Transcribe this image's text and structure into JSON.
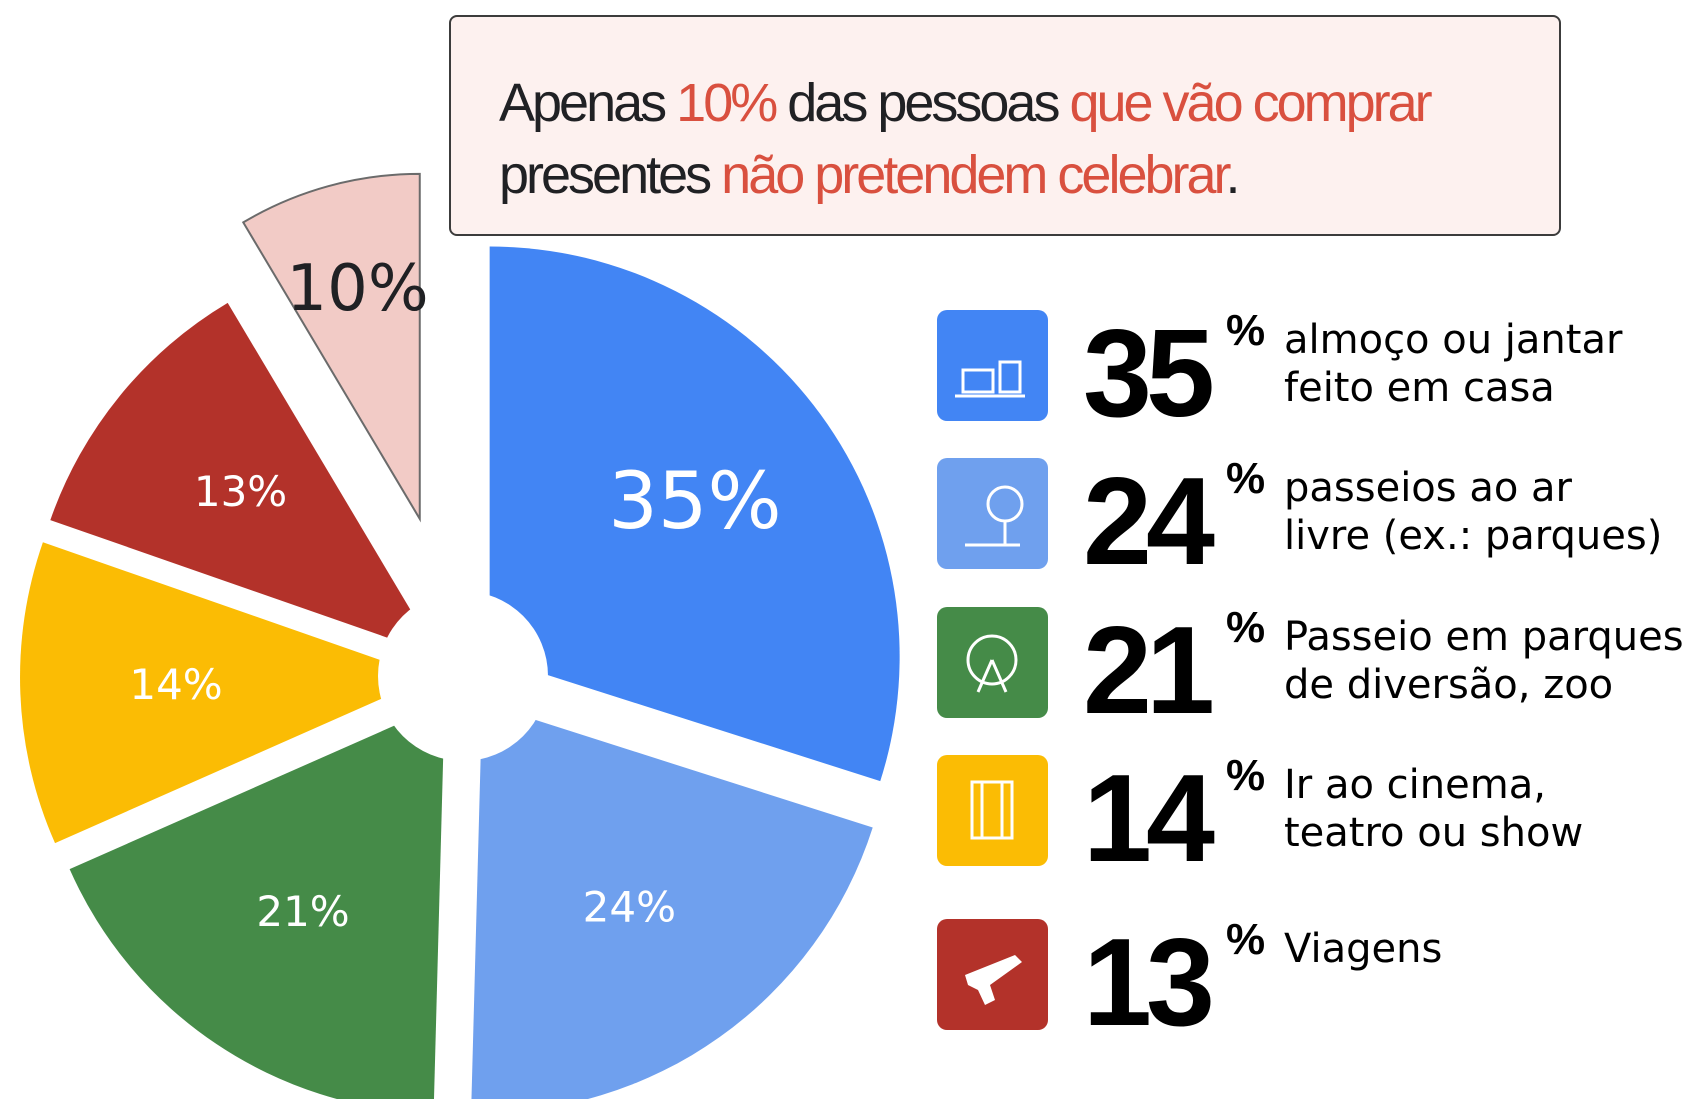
{
  "title_lines": [
    [
      {
        "text": "Apenas ",
        "color": "#202124"
      },
      {
        "text": "10%",
        "color": "#d9503f"
      },
      {
        "text": " das pessoas ",
        "color": "#202124"
      },
      {
        "text": "que vão comprar",
        "color": "#d9503f"
      }
    ],
    [
      {
        "text": "presentes ",
        "color": "#202124"
      },
      {
        "text": "não pretendem celebrar",
        "color": "#d9503f"
      },
      {
        "text": ".",
        "color": "#202124"
      }
    ]
  ],
  "chart_data": {
    "type": "pie",
    "categories": [
      "almoço ou jantar\nfeito em casa",
      "passeios ao ar\nlivre (ex.: parques)",
      "Passeio em parques\nde diversão, zoo",
      "Ir ao cinema,\nteatro ou show",
      "Viagens",
      null
    ],
    "values": [
      35,
      24,
      21,
      14,
      13,
      10
    ],
    "value_labels": [
      "35%",
      "24%",
      "21%",
      "14%",
      "13%",
      "10%"
    ],
    "colors": [
      "#4285f4",
      "#6fa0ee",
      "#458b48",
      "#fbbc04",
      "#b3322a",
      "#f2cbc6"
    ],
    "label_colors": [
      "#ffffff",
      "#ffffff",
      "#ffffff",
      "#ffffff",
      "#ffffff",
      "#202124"
    ],
    "legend_unit": "%"
  }
}
